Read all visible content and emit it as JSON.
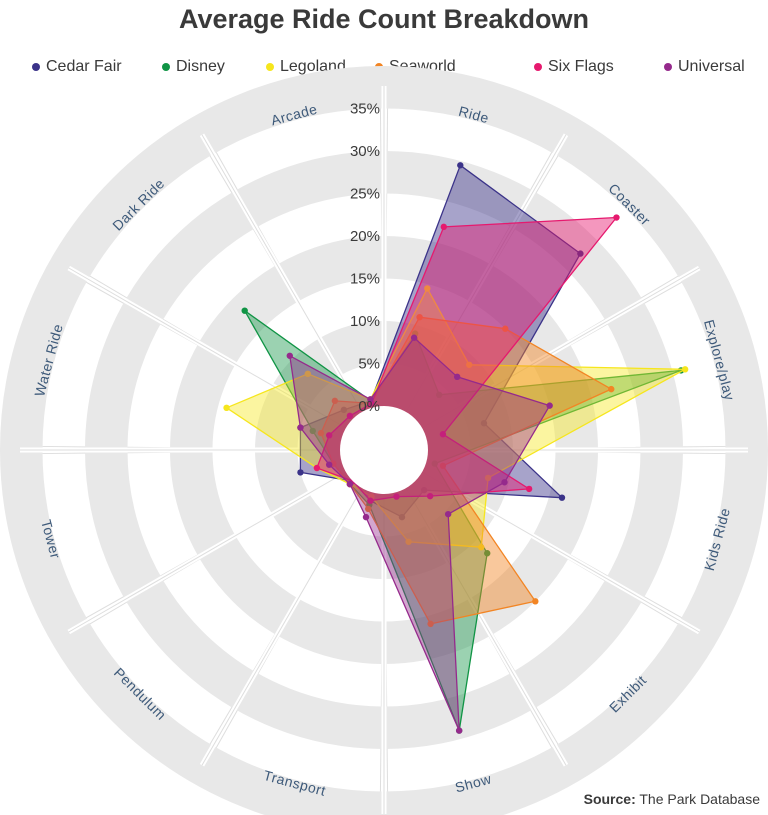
{
  "chart_data": {
    "type": "radar-polar",
    "title": "Average Ride Count Breakdown",
    "categories": [
      "Ride",
      "Coaster",
      "Explore/play",
      "Kids Ride",
      "Exhibit",
      "Show",
      "Transport",
      "Pendulum",
      "Tower",
      "Water Ride",
      "Dark Ride",
      "Arcade"
    ],
    "r_ticks": [
      "0%",
      "5%",
      "10%",
      "15%",
      "20%",
      "25%",
      "30%",
      "35%"
    ],
    "r_max": 35,
    "series": [
      {
        "name": "Cedar Fair",
        "color": "#3b3389",
        "values": [
          29.5,
          27.5,
          7,
          16.5,
          1.5,
          3,
          1,
          0,
          5,
          5,
          1.5,
          0.8
        ],
        "fill_opacity": 0.45
      },
      {
        "name": "Disney",
        "color": "#109445",
        "values": [
          9,
          4,
          31,
          1,
          12,
          29,
          1.5,
          0.5,
          1,
          3.5,
          18,
          0.8
        ],
        "fill_opacity": 0.42
      },
      {
        "name": "Legoland",
        "color": "#f6e61d",
        "values": [
          14.5,
          9,
          31.5,
          7.5,
          11,
          6,
          0.5,
          0.5,
          3,
          14,
          7.5,
          1
        ],
        "fill_opacity": 0.42
      },
      {
        "name": "Seaworld",
        "color": "#f28524",
        "values": [
          11,
          15,
          22.5,
          2,
          20,
          16,
          2,
          0.5,
          1,
          2.5,
          3,
          0.5
        ],
        "fill_opacity": 0.45
      },
      {
        "name": "Six Flags",
        "color": "#e6196e",
        "values": [
          22,
          33.5,
          2,
          12.5,
          2.5,
          0.5,
          1,
          0,
          3,
          1.5,
          0.5,
          0.5
        ],
        "fill_opacity": 0.45
      },
      {
        "name": "Universal",
        "color": "#952a8c",
        "values": [
          8.5,
          7,
          15,
          9.5,
          5.5,
          29,
          3,
          0.5,
          1.5,
          5,
          10.5,
          1
        ],
        "fill_opacity": 0.42
      }
    ]
  },
  "source": {
    "label": "Source:",
    "text": "The Park Database"
  }
}
